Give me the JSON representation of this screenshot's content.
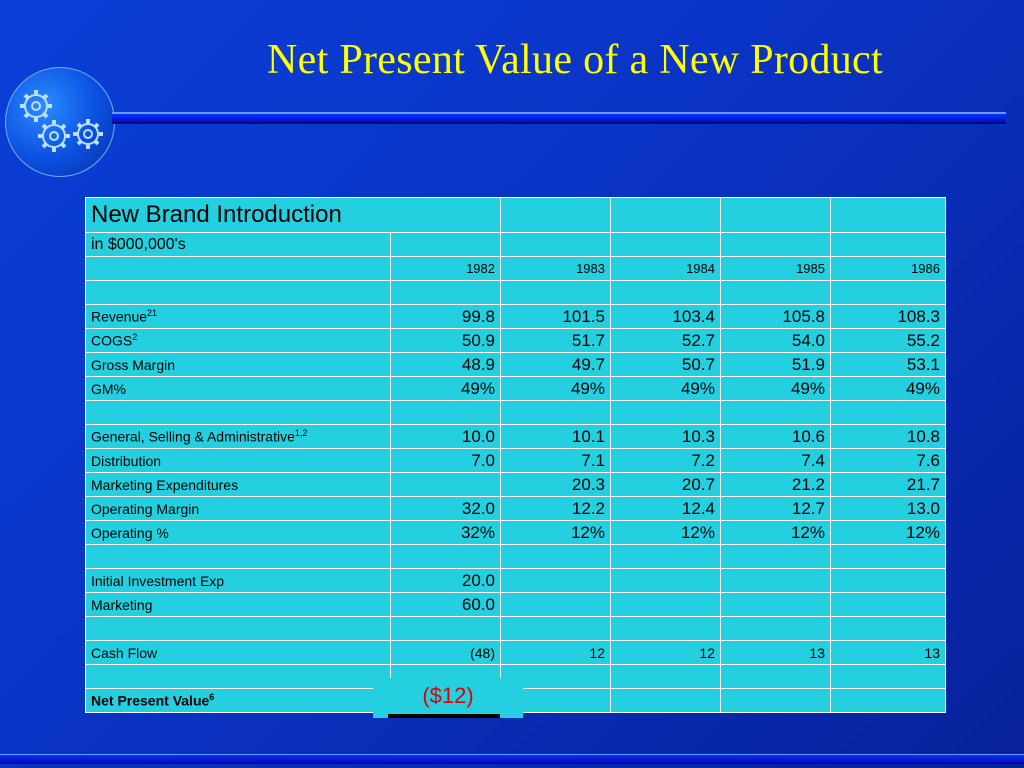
{
  "title": "Net Present Value of a New Product",
  "table": {
    "heading": "New Brand Introduction",
    "units": "in $000,000's",
    "years": [
      "1982",
      "1983",
      "1984",
      "1985",
      "1986"
    ],
    "rows": [
      {
        "label": "Revenue",
        "sup": "21",
        "values": [
          "99.8",
          "101.5",
          "103.4",
          "105.8",
          "108.3"
        ]
      },
      {
        "label": "COGS",
        "sup": "2",
        "values": [
          "50.9",
          "51.7",
          "52.7",
          "54.0",
          "55.2"
        ]
      },
      {
        "label": "Gross Margin",
        "sup": "",
        "values": [
          "48.9",
          "49.7",
          "50.7",
          "51.9",
          "53.1"
        ]
      },
      {
        "label": "GM%",
        "sup": "",
        "values": [
          "49%",
          "49%",
          "49%",
          "49%",
          "49%"
        ]
      },
      {
        "label": "General, Selling & Administrative",
        "sup": "1,2",
        "values": [
          "10.0",
          "10.1",
          "10.3",
          "10.6",
          "10.8"
        ]
      },
      {
        "label": "Distribution",
        "sup": "",
        "values": [
          "7.0",
          "7.1",
          "7.2",
          "7.4",
          "7.6"
        ]
      },
      {
        "label": "Marketing Expenditures",
        "sup": "",
        "values": [
          "",
          "20.3",
          "20.7",
          "21.2",
          "21.7"
        ]
      },
      {
        "label": "Operating Margin",
        "sup": "",
        "values": [
          "32.0",
          "12.2",
          "12.4",
          "12.7",
          "13.0"
        ]
      },
      {
        "label": "Operating %",
        "sup": "",
        "values": [
          "32%",
          "12%",
          "12%",
          "12%",
          "12%"
        ]
      },
      {
        "label": "Initial Investment Exp",
        "sup": "",
        "values": [
          "20.0",
          "",
          "",
          "",
          ""
        ]
      },
      {
        "label": "Marketing",
        "sup": "",
        "values": [
          "60.0",
          "",
          "",
          "",
          ""
        ]
      },
      {
        "label": "Cash Flow",
        "sup": "",
        "values": [
          "(48)",
          "12",
          "12",
          "13",
          "13"
        ]
      }
    ],
    "npv": {
      "label": "Net Present Value",
      "sup": "6",
      "value": "($12)"
    }
  },
  "colors": {
    "background": "#0a3fd8",
    "title": "#ffff00",
    "table_fill": "#24cfe0",
    "npv_value": "#e00000"
  },
  "icons": {
    "logo": "gears-icon"
  }
}
